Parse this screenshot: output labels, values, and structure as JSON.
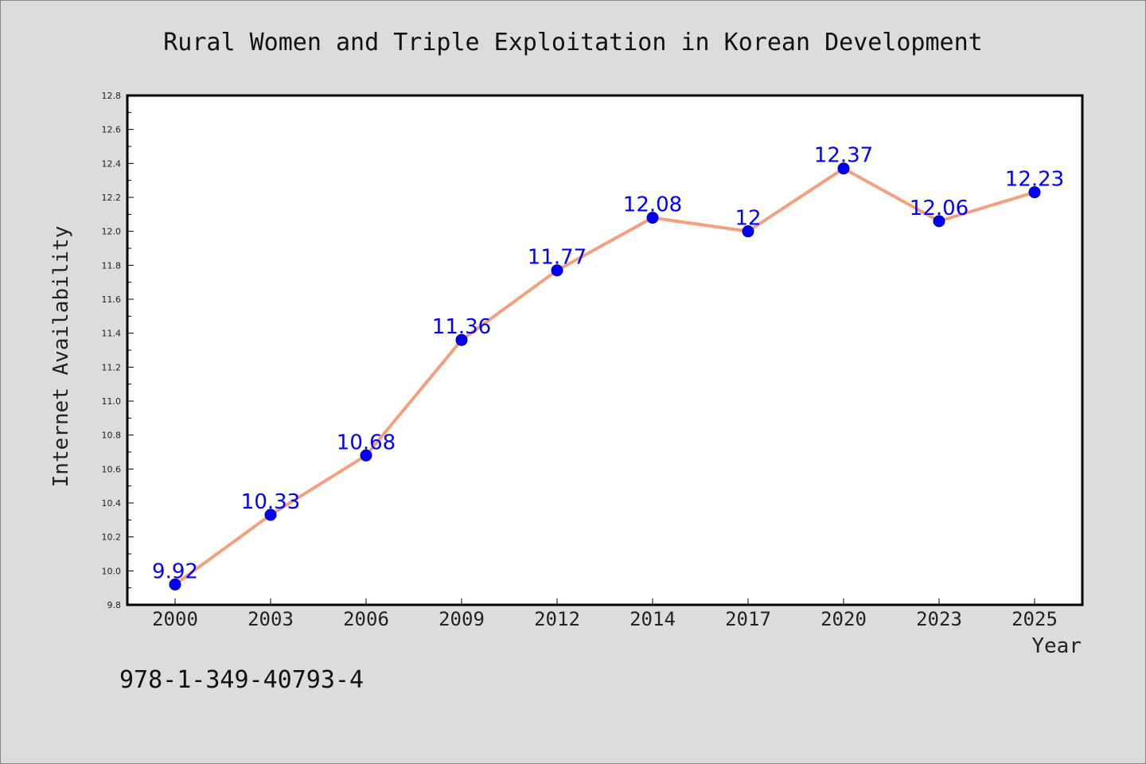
{
  "chart_data": {
    "type": "line",
    "title": "Rural Women and Triple Exploitation in Korean Development",
    "xlabel": "Year",
    "ylabel": "Internet Availability",
    "categories": [
      "2000",
      "2003",
      "2006",
      "2009",
      "2012",
      "2014",
      "2017",
      "2020",
      "2023",
      "2025"
    ],
    "values": [
      9.92,
      10.33,
      10.68,
      11.36,
      11.77,
      12.08,
      12.0,
      12.37,
      12.06,
      12.23
    ],
    "data_labels": [
      "9.92",
      "10.33",
      "10.68",
      "11.36",
      "11.77",
      "12.08",
      "12",
      "12.37",
      "12.06",
      "12.23"
    ],
    "ylim": [
      9.8,
      12.8
    ],
    "yticks": [
      "9.8",
      "10.0",
      "10.2",
      "10.4",
      "10.6",
      "10.8",
      "11.0",
      "11.2",
      "11.4",
      "11.6",
      "11.8",
      "12.0",
      "12.2",
      "12.4",
      "12.6",
      "12.8"
    ],
    "grid": false,
    "colors": {
      "line": "#f4a07c",
      "marker": "#0000ff",
      "label": "#0000ff",
      "background": "#dcdcdc",
      "plot_background": "#ffffff"
    }
  },
  "footer": {
    "isbn": "978-1-349-40793-4"
  }
}
